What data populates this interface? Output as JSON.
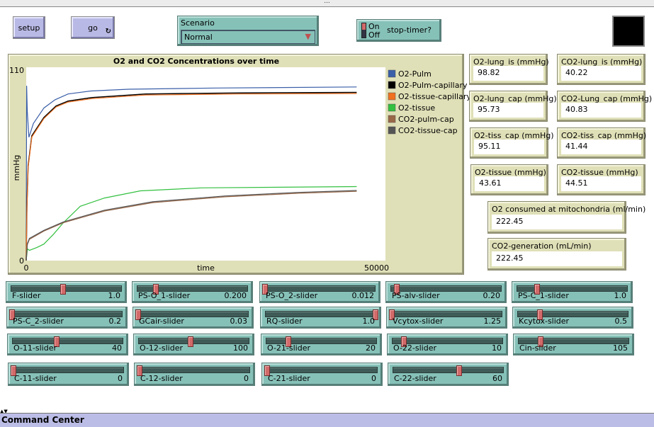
{
  "window": {
    "title": "..."
  },
  "toolbar": {
    "setup_label": "setup",
    "go_label": "go",
    "go_icon": "forever-loop-icon"
  },
  "scenario": {
    "label": "Scenario",
    "value": "Normal"
  },
  "switch": {
    "on_label": "On",
    "off_label": "Off",
    "label": "stop-timer?",
    "state": "on"
  },
  "view": {
    "color": "#000000"
  },
  "monitors": [
    {
      "label": "O2-lung_is (mmHg)",
      "value": "98.82"
    },
    {
      "label": "CO2-lung_is (mmHg)",
      "value": "40.22"
    },
    {
      "label": "O2-lung_cap (mmHg)",
      "value": "95.73"
    },
    {
      "label": "CO2-Lung_cap (mmHg)",
      "value": "40.83"
    },
    {
      "label": "O2-tiss_cap (mmHg)",
      "value": "95.11"
    },
    {
      "label": "CO2-tiss_cap (mmHg)",
      "value": "41.44"
    },
    {
      "label": "O2-tissue (mmHg)",
      "value": "43.61"
    },
    {
      "label": "CO2-tissue (mmHg)",
      "value": "44.51"
    },
    {
      "label": "O2 consumed at mitochondria (ml/min)",
      "value": "222.45"
    },
    {
      "label": "CO2-generation (mL/min)",
      "value": "222.45"
    }
  ],
  "sliders": [
    {
      "label": "F-slider",
      "value": "1.0",
      "fraction": 0.47
    },
    {
      "label": "PS-O_1-slider",
      "value": "0.200",
      "fraction": 0.17
    },
    {
      "label": "PS-O_2-slider",
      "value": "0.012",
      "fraction": 0.0
    },
    {
      "label": "PS-alv-slider",
      "value": "0.20",
      "fraction": 0.05
    },
    {
      "label": "PS-C_1-slider",
      "value": "1.0",
      "fraction": 0.18
    },
    {
      "label": "PS-C_2-slider",
      "value": "0.2",
      "fraction": 0.0
    },
    {
      "label": "GCair-slider",
      "value": "0.03",
      "fraction": 0.0
    },
    {
      "label": "RQ-slider",
      "value": "1.0",
      "fraction": 1.0
    },
    {
      "label": "Vcytox-slider",
      "value": "1.25",
      "fraction": 0.0
    },
    {
      "label": "Kcytox-slider",
      "value": "0.5",
      "fraction": 0.2
    },
    {
      "label": "O-11-slider",
      "value": "40",
      "fraction": 0.4
    },
    {
      "label": "O-12-slider",
      "value": "100",
      "fraction": 0.47
    },
    {
      "label": "O-21-slider",
      "value": "20",
      "fraction": 0.2
    },
    {
      "label": "O-22-slider",
      "value": "10",
      "fraction": 0.1
    },
    {
      "label": "Cin-slider",
      "value": "105",
      "fraction": 0.2
    },
    {
      "label": "C-11-slider",
      "value": "0",
      "fraction": 0.0
    },
    {
      "label": "C-12-slider",
      "value": "0",
      "fraction": 0.0
    },
    {
      "label": "C-21-slider",
      "value": "0",
      "fraction": 0.0
    },
    {
      "label": "C-22-slider",
      "value": "60",
      "fraction": 0.6
    }
  ],
  "command_center": {
    "label": "Command Center"
  },
  "chart_data": {
    "type": "line",
    "title": "O2 and CO2 Concentrations over time",
    "xlabel": "time",
    "ylabel": "mmHg",
    "xlim": [
      0,
      50000
    ],
    "ylim": [
      0,
      110
    ],
    "x_ticks": [
      "0",
      "50000"
    ],
    "y_ticks": [
      "0",
      "110"
    ],
    "grid": false,
    "legend": "right",
    "series": [
      {
        "name": "O2-Pulm",
        "color": "#3a5fa8",
        "points": [
          [
            0,
            0
          ],
          [
            60,
            99.5
          ],
          [
            150,
            85
          ],
          [
            370,
            70.2
          ],
          [
            1000,
            78
          ],
          [
            2460,
            86.8
          ],
          [
            4000,
            91.5
          ],
          [
            5830,
            94.8
          ],
          [
            9000,
            96.5
          ],
          [
            14260,
            97.5
          ],
          [
            26400,
            98.2
          ],
          [
            46000,
            98.8
          ]
        ]
      },
      {
        "name": "O2-Pulm-capillary",
        "color": "#000000",
        "points": [
          [
            0,
            0
          ],
          [
            100,
            31
          ],
          [
            270,
            54
          ],
          [
            775,
            71
          ],
          [
            2460,
            81.4
          ],
          [
            4150,
            88
          ],
          [
            5830,
            90.8
          ],
          [
            9200,
            92.8
          ],
          [
            16600,
            94.8
          ],
          [
            30000,
            95.4
          ],
          [
            46000,
            95.7
          ]
        ]
      },
      {
        "name": "O2-tissue-capillary",
        "color": "#f07020",
        "points": [
          [
            0,
            0
          ],
          [
            100,
            30
          ],
          [
            270,
            53
          ],
          [
            775,
            70.3
          ],
          [
            2460,
            80.8
          ],
          [
            4150,
            87.4
          ],
          [
            5830,
            90.2
          ],
          [
            9200,
            92.2
          ],
          [
            16600,
            94.2
          ],
          [
            30000,
            94.8
          ],
          [
            46000,
            95.1
          ]
        ]
      },
      {
        "name": "O2-tissue",
        "color": "#33c040",
        "points": [
          [
            0,
            0
          ],
          [
            170,
            6.7
          ],
          [
            440,
            5.8
          ],
          [
            1500,
            7.5
          ],
          [
            2460,
            9.4
          ],
          [
            3800,
            15
          ],
          [
            5160,
            21.5
          ],
          [
            7520,
            30.9
          ],
          [
            10900,
            35.6
          ],
          [
            15900,
            39.7
          ],
          [
            24400,
            41.4
          ],
          [
            46000,
            42.1
          ]
        ]
      },
      {
        "name": "CO2-pulm-cap",
        "color": "#9a6848",
        "points": [
          [
            0,
            0
          ],
          [
            150,
            9
          ],
          [
            440,
            12.1
          ],
          [
            2460,
            16.8
          ],
          [
            5160,
            21.5
          ],
          [
            10900,
            28.2
          ],
          [
            17600,
            33
          ],
          [
            27700,
            36.3
          ],
          [
            37900,
            38.3
          ],
          [
            46000,
            39.4
          ]
        ]
      },
      {
        "name": "CO2-tissue-cap",
        "color": "#555555",
        "points": [
          [
            0,
            0
          ],
          [
            150,
            9.5
          ],
          [
            440,
            12.6
          ],
          [
            2460,
            17.2
          ],
          [
            5160,
            22
          ],
          [
            10900,
            28.7
          ],
          [
            17600,
            33.5
          ],
          [
            27700,
            36.8
          ],
          [
            37900,
            38.8
          ],
          [
            46000,
            39.9
          ]
        ]
      }
    ]
  }
}
